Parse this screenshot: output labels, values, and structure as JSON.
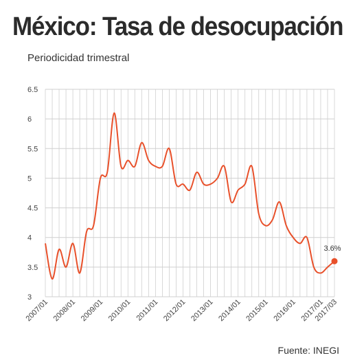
{
  "title": "México: Tasa de desocupación",
  "subtitle": "Periodicidad trimestral",
  "source": "Fuente: INEGI",
  "colors": {
    "line": "#e8502a",
    "grid": "#cfcfcf",
    "text": "#444444"
  },
  "chart_data": {
    "type": "line",
    "title": "México: Tasa de desocupación",
    "subtitle": "Periodicidad trimestral",
    "xlabel": "",
    "ylabel": "",
    "ylim": [
      3,
      6.5
    ],
    "yticks": [
      "3",
      "3.5",
      "4",
      "4.5",
      "5",
      "5.5",
      "6",
      "6.5"
    ],
    "xticks": [
      "2007/01",
      "2008/01",
      "2009/01",
      "2010/01",
      "2011/01",
      "2012/01",
      "2013/01",
      "2014/01",
      "2015/01",
      "2016/01",
      "2017/01",
      "2017/03"
    ],
    "grid": true,
    "legend": "none",
    "end_label": "3.6%",
    "series": [
      {
        "x": [
          "2007/01",
          "2007/02",
          "2007/03",
          "2007/04",
          "2008/01",
          "2008/02",
          "2008/03",
          "2008/04",
          "2009/01",
          "2009/02",
          "2009/03",
          "2009/04",
          "2010/01",
          "2010/02",
          "2010/03",
          "2010/04",
          "2011/01",
          "2011/02",
          "2011/03",
          "2011/04",
          "2012/01",
          "2012/02",
          "2012/03",
          "2012/04",
          "2013/01",
          "2013/02",
          "2013/03",
          "2013/04",
          "2014/01",
          "2014/02",
          "2014/03",
          "2014/04",
          "2015/01",
          "2015/02",
          "2015/03",
          "2015/04",
          "2016/01",
          "2016/02",
          "2016/03",
          "2016/04",
          "2017/01",
          "2017/02",
          "2017/03"
        ],
        "values": [
          3.9,
          3.3,
          3.8,
          3.5,
          3.9,
          3.4,
          4.1,
          4.2,
          5.0,
          5.1,
          6.1,
          5.2,
          5.3,
          5.2,
          5.6,
          5.3,
          5.2,
          5.2,
          5.5,
          4.9,
          4.9,
          4.8,
          5.1,
          4.9,
          4.9,
          5.0,
          5.2,
          4.6,
          4.8,
          4.9,
          5.2,
          4.4,
          4.2,
          4.3,
          4.6,
          4.2,
          4.0,
          3.9,
          4.0,
          3.5,
          3.4,
          3.5,
          3.6
        ]
      }
    ]
  }
}
